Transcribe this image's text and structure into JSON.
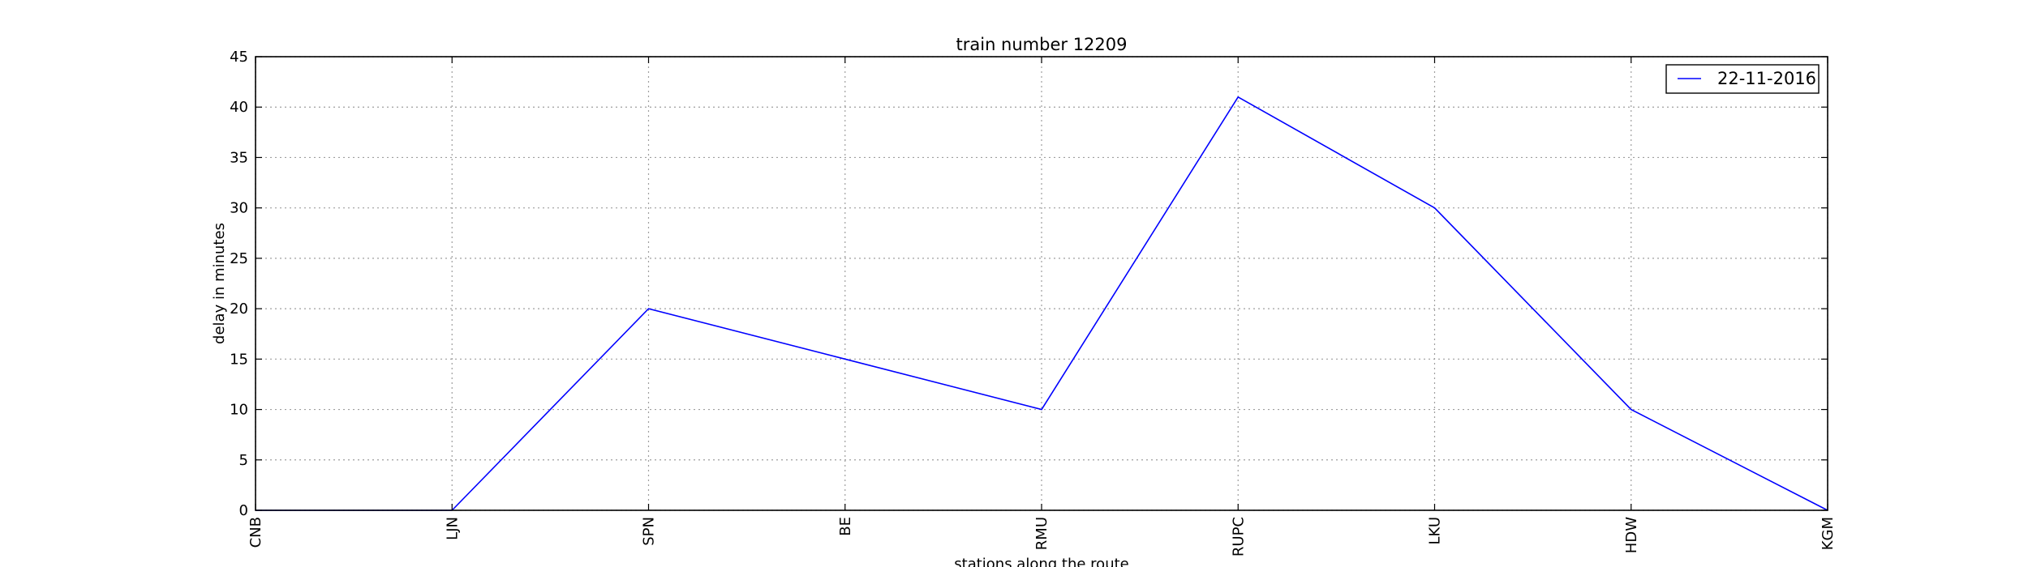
{
  "chart_data": {
    "type": "line",
    "title": "train number 12209",
    "xlabel": "stations along the route",
    "ylabel": "delay in minutes",
    "categories": [
      "CNB",
      "LJN",
      "SPN",
      "BE",
      "RMU",
      "RUPC",
      "LKU",
      "HDW",
      "KGM"
    ],
    "series": [
      {
        "name": "22-11-2016",
        "values": [
          0,
          0,
          20,
          15,
          10,
          41,
          30,
          10,
          0
        ],
        "color": "#0000ff"
      }
    ],
    "ylim": [
      0,
      45
    ],
    "yticks": [
      0,
      5,
      10,
      15,
      20,
      25,
      30,
      35,
      40,
      45
    ],
    "grid": true,
    "legend_position": "top-right",
    "x_tick_rotation": "vertical"
  }
}
